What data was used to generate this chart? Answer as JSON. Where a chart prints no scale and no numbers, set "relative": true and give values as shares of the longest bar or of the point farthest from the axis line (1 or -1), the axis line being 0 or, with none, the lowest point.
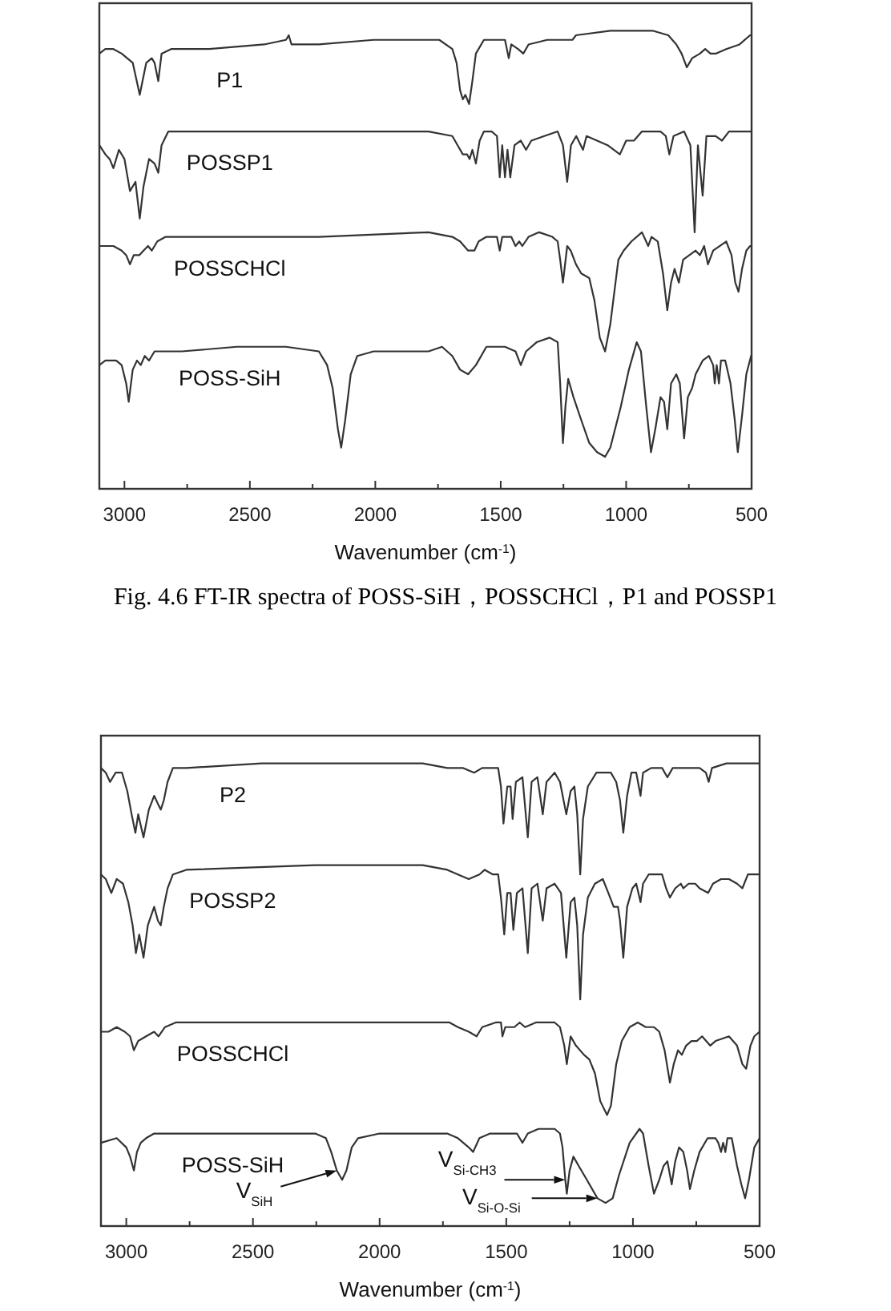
{
  "chart_data": [
    {
      "type": "line",
      "xlabel": "Wavenumber (cm$^{-1}$)",
      "xlim": [
        3100,
        500
      ],
      "xticks": [
        3000,
        {
          "value": 2750,
          "label": null
        },
        2500,
        {
          "value": 2250,
          "label": null
        },
        2000,
        {
          "value": 1750,
          "label": null
        },
        1500,
        {
          "value": 1250,
          "label": null
        },
        1000,
        {
          "value": 750,
          "label": null
        },
        500
      ],
      "relative": true,
      "annotations": [
        "Fig. 4.6 FT-IR spectra of POSS-SiH，POSSCHCl，P1 and POSSP1"
      ],
      "series": [
        {
          "name": "P1",
          "color": "#333333",
          "x": [
            3100,
            3076,
            3044,
            3011,
            2989,
            2967,
            2939,
            2913,
            2891,
            2880,
            2865,
            2852,
            2814,
            2662,
            2443,
            2356,
            2345,
            2334,
            2225,
            2007,
            1745,
            1693,
            1676,
            1662,
            1651,
            1641,
            1626,
            1613,
            1599,
            1567,
            1525,
            1483,
            1468,
            1458,
            1431,
            1410,
            1389,
            1315,
            1214,
            1200,
            1063,
            895,
            832,
            800,
            779,
            758,
            737,
            706,
            685,
            664,
            643,
            601,
            548,
            506,
            500
          ],
          "values": [
            0.95,
            0.96,
            0.96,
            0.95,
            0.94,
            0.93,
            0.86,
            0.93,
            0.94,
            0.93,
            0.89,
            0.95,
            0.96,
            0.96,
            0.97,
            0.98,
            0.99,
            0.97,
            0.97,
            0.98,
            0.98,
            0.96,
            0.93,
            0.87,
            0.85,
            0.86,
            0.84,
            0.89,
            0.95,
            0.98,
            0.98,
            0.98,
            0.94,
            0.97,
            0.96,
            0.95,
            0.97,
            0.98,
            0.98,
            0.99,
            1.0,
            1.0,
            0.99,
            0.97,
            0.95,
            0.92,
            0.94,
            0.95,
            0.96,
            0.95,
            0.95,
            0.96,
            0.97,
            0.99,
            0.99
          ]
        },
        {
          "name": "POSSP1",
          "color": "#333333",
          "x": [
            3100,
            3076,
            3059,
            3044,
            3022,
            3000,
            2978,
            2956,
            2939,
            2924,
            2902,
            2880,
            2865,
            2852,
            2825,
            2662,
            2225,
            1941,
            1788,
            1693,
            1672,
            1651,
            1634,
            1624,
            1613,
            1599,
            1584,
            1567,
            1536,
            1515,
            1504,
            1494,
            1483,
            1473,
            1462,
            1445,
            1420,
            1399,
            1378,
            1326,
            1273,
            1252,
            1235,
            1220,
            1199,
            1172,
            1158,
            1116,
            1074,
            1025,
            1000,
            969,
            937,
            863,
            842,
            828,
            811,
            769,
            744,
            727,
            714,
            695,
            680,
            643,
            618,
            590,
            548,
            502,
            500
          ],
          "values": [
            0.75,
            0.73,
            0.72,
            0.7,
            0.74,
            0.72,
            0.65,
            0.67,
            0.59,
            0.66,
            0.72,
            0.71,
            0.69,
            0.75,
            0.78,
            0.78,
            0.78,
            0.78,
            0.78,
            0.77,
            0.75,
            0.73,
            0.73,
            0.72,
            0.74,
            0.71,
            0.76,
            0.78,
            0.78,
            0.77,
            0.68,
            0.75,
            0.68,
            0.74,
            0.68,
            0.75,
            0.76,
            0.74,
            0.76,
            0.77,
            0.78,
            0.75,
            0.67,
            0.75,
            0.77,
            0.74,
            0.77,
            0.76,
            0.75,
            0.73,
            0.76,
            0.76,
            0.78,
            0.78,
            0.77,
            0.73,
            0.77,
            0.78,
            0.75,
            0.56,
            0.75,
            0.64,
            0.77,
            0.77,
            0.76,
            0.78,
            0.78,
            0.78,
            0.78
          ]
        },
        {
          "name": "POSSCHCl",
          "color": "#333333",
          "x": [
            3100,
            3065,
            3044,
            3011,
            2993,
            2978,
            2963,
            2941,
            2924,
            2906,
            2891,
            2869,
            2836,
            2662,
            2225,
            1788,
            1693,
            1662,
            1630,
            1605,
            1588,
            1557,
            1515,
            1504,
            1494,
            1458,
            1441,
            1426,
            1414,
            1389,
            1347,
            1294,
            1273,
            1263,
            1252,
            1235,
            1221,
            1200,
            1179,
            1147,
            1126,
            1105,
            1084,
            1063,
            1031,
            1010,
            979,
            937,
            912,
            899,
            874,
            853,
            836,
            821,
            807,
            790,
            773,
            748,
            723,
            706,
            689,
            674,
            653,
            601,
            580,
            565,
            552,
            538,
            521,
            506,
            500
          ],
          "values": [
            0.53,
            0.53,
            0.53,
            0.52,
            0.51,
            0.49,
            0.51,
            0.51,
            0.52,
            0.53,
            0.52,
            0.54,
            0.55,
            0.55,
            0.55,
            0.56,
            0.55,
            0.54,
            0.52,
            0.52,
            0.54,
            0.55,
            0.55,
            0.52,
            0.55,
            0.55,
            0.53,
            0.54,
            0.53,
            0.55,
            0.56,
            0.55,
            0.54,
            0.5,
            0.45,
            0.53,
            0.52,
            0.49,
            0.47,
            0.46,
            0.41,
            0.33,
            0.3,
            0.36,
            0.5,
            0.52,
            0.54,
            0.56,
            0.53,
            0.55,
            0.54,
            0.47,
            0.39,
            0.45,
            0.48,
            0.45,
            0.5,
            0.51,
            0.52,
            0.51,
            0.53,
            0.49,
            0.52,
            0.54,
            0.51,
            0.45,
            0.43,
            0.48,
            0.52,
            0.53,
            0.53
          ]
        },
        {
          "name": "POSS-SiH",
          "color": "#333333",
          "x": [
            3100,
            3076,
            3033,
            3011,
            2993,
            2983,
            2967,
            2950,
            2935,
            2919,
            2902,
            2880,
            2771,
            2552,
            2356,
            2225,
            2192,
            2170,
            2149,
            2136,
            2120,
            2098,
            2072,
            2007,
            1898,
            1832,
            1788,
            1734,
            1693,
            1662,
            1630,
            1599,
            1557,
            1483,
            1441,
            1420,
            1399,
            1357,
            1305,
            1273,
            1263,
            1252,
            1242,
            1231,
            1210,
            1179,
            1147,
            1116,
            1084,
            1063,
            1021,
            989,
            958,
            941,
            920,
            901,
            884,
            863,
            849,
            836,
            821,
            800,
            786,
            769,
            754,
            737,
            723,
            695,
            670,
            653,
            647,
            639,
            630,
            622,
            605,
            584,
            567,
            555,
            538,
            521,
            502,
            500
          ],
          "values": [
            0.27,
            0.28,
            0.28,
            0.27,
            0.23,
            0.19,
            0.26,
            0.28,
            0.27,
            0.29,
            0.28,
            0.3,
            0.3,
            0.31,
            0.31,
            0.3,
            0.27,
            0.22,
            0.13,
            0.09,
            0.15,
            0.25,
            0.29,
            0.3,
            0.3,
            0.3,
            0.3,
            0.31,
            0.29,
            0.26,
            0.25,
            0.27,
            0.31,
            0.31,
            0.3,
            0.27,
            0.3,
            0.32,
            0.33,
            0.32,
            0.23,
            0.1,
            0.18,
            0.24,
            0.2,
            0.15,
            0.1,
            0.08,
            0.07,
            0.09,
            0.18,
            0.26,
            0.32,
            0.3,
            0.18,
            0.08,
            0.13,
            0.2,
            0.19,
            0.13,
            0.23,
            0.25,
            0.23,
            0.11,
            0.2,
            0.22,
            0.25,
            0.28,
            0.29,
            0.27,
            0.23,
            0.27,
            0.23,
            0.28,
            0.28,
            0.23,
            0.15,
            0.08,
            0.16,
            0.25,
            0.29,
            0.29
          ]
        }
      ]
    },
    {
      "type": "line",
      "xlabel": "Wavenumber (cm$^{-1}$)",
      "xlim": [
        3100,
        500
      ],
      "xticks": [
        3000,
        {
          "value": 2750,
          "label": null
        },
        2500,
        {
          "value": 2250,
          "label": null
        },
        2000,
        {
          "value": 1750,
          "label": null
        },
        1500,
        {
          "value": 1250,
          "label": null
        },
        1000,
        {
          "value": 750,
          "label": null
        },
        500
      ],
      "relative": true,
      "annotations": [
        {
          "text": "V$_{SiH}$",
          "x": 2169,
          "y": 0.12
        },
        {
          "text": "V$_{Si-CH3}$",
          "x": 1267,
          "y": 0.1
        },
        {
          "text": "V$_{Si-O-Si}$",
          "x": 1140,
          "y": 0.06
        }
      ],
      "series": [
        {
          "name": "P2",
          "color": "#333333",
          "x": [
            3100,
            3081,
            3064,
            3042,
            3017,
            2996,
            2979,
            2964,
            2953,
            2932,
            2911,
            2890,
            2873,
            2864,
            2852,
            2837,
            2816,
            2763,
            2466,
            2042,
            1830,
            1733,
            1670,
            1627,
            1595,
            1564,
            1532,
            1521,
            1511,
            1496,
            1483,
            1475,
            1462,
            1436,
            1415,
            1400,
            1377,
            1356,
            1341,
            1309,
            1288,
            1263,
            1246,
            1231,
            1220,
            1208,
            1197,
            1178,
            1144,
            1108,
            1087,
            1066,
            1051,
            1038,
            1023,
            1006,
            987,
            970,
            960,
            928,
            885,
            864,
            843,
            801,
            737,
            712,
            701,
            688,
            631,
            500
          ],
          "values": [
            0.99,
            0.98,
            0.96,
            0.98,
            0.98,
            0.94,
            0.89,
            0.85,
            0.89,
            0.84,
            0.9,
            0.93,
            0.91,
            0.9,
            0.92,
            0.96,
            0.99,
            0.99,
            1.0,
            1.0,
            1.0,
            0.99,
            0.99,
            0.98,
            0.99,
            0.99,
            0.99,
            0.95,
            0.87,
            0.95,
            0.95,
            0.88,
            0.96,
            0.97,
            0.84,
            0.96,
            0.97,
            0.89,
            0.96,
            0.98,
            0.96,
            0.89,
            0.94,
            0.95,
            0.89,
            0.76,
            0.88,
            0.95,
            0.98,
            0.98,
            0.98,
            0.96,
            0.92,
            0.85,
            0.93,
            0.98,
            0.98,
            0.93,
            0.98,
            0.99,
            0.99,
            0.97,
            0.99,
            0.99,
            0.99,
            0.98,
            0.96,
            0.99,
            1.0,
            1.0
          ]
        },
        {
          "name": "POSSP2",
          "color": "#333333",
          "x": [
            3100,
            3081,
            3059,
            3038,
            3013,
            2992,
            2975,
            2962,
            2949,
            2932,
            2915,
            2890,
            2875,
            2864,
            2852,
            2837,
            2816,
            2763,
            2254,
            1830,
            1733,
            1691,
            1648,
            1606,
            1585,
            1553,
            1532,
            1521,
            1508,
            1496,
            1483,
            1472,
            1458,
            1436,
            1415,
            1400,
            1377,
            1356,
            1341,
            1309,
            1284,
            1263,
            1246,
            1231,
            1220,
            1208,
            1197,
            1178,
            1150,
            1119,
            1097,
            1076,
            1059,
            1051,
            1038,
            1023,
            1002,
            987,
            970,
            960,
            938,
            885,
            869,
            854,
            833,
            811,
            801,
            780,
            754,
            737,
            703,
            684,
            652,
            621,
            589,
            568,
            546,
            525,
            500
          ],
          "values": [
            0.76,
            0.75,
            0.72,
            0.75,
            0.74,
            0.7,
            0.65,
            0.59,
            0.63,
            0.58,
            0.65,
            0.69,
            0.66,
            0.65,
            0.69,
            0.73,
            0.76,
            0.77,
            0.78,
            0.78,
            0.77,
            0.76,
            0.75,
            0.76,
            0.77,
            0.76,
            0.76,
            0.71,
            0.63,
            0.72,
            0.72,
            0.64,
            0.72,
            0.73,
            0.59,
            0.73,
            0.74,
            0.66,
            0.73,
            0.74,
            0.72,
            0.58,
            0.7,
            0.71,
            0.65,
            0.49,
            0.63,
            0.71,
            0.74,
            0.75,
            0.72,
            0.69,
            0.69,
            0.66,
            0.58,
            0.69,
            0.73,
            0.74,
            0.7,
            0.74,
            0.76,
            0.76,
            0.73,
            0.71,
            0.73,
            0.74,
            0.73,
            0.74,
            0.74,
            0.73,
            0.72,
            0.74,
            0.75,
            0.75,
            0.74,
            0.73,
            0.76,
            0.76,
            0.76
          ]
        },
        {
          "name": "POSSCHCl",
          "color": "#333333",
          "x": [
            3100,
            3070,
            3038,
            3006,
            2985,
            2970,
            2953,
            2922,
            2890,
            2873,
            2847,
            2805,
            2466,
            2042,
            1724,
            1691,
            1648,
            1617,
            1595,
            1542,
            1521,
            1515,
            1504,
            1468,
            1447,
            1426,
            1383,
            1309,
            1288,
            1271,
            1261,
            1246,
            1225,
            1193,
            1172,
            1150,
            1129,
            1102,
            1087,
            1066,
            1044,
            1013,
            981,
            949,
            917,
            896,
            875,
            854,
            839,
            822,
            807,
            790,
            769,
            748,
            727,
            695,
            674,
            621,
            589,
            568,
            553,
            536,
            521,
            500
          ],
          "values": [
            0.42,
            0.42,
            0.43,
            0.42,
            0.41,
            0.38,
            0.4,
            0.41,
            0.42,
            0.41,
            0.43,
            0.44,
            0.44,
            0.44,
            0.44,
            0.43,
            0.42,
            0.41,
            0.43,
            0.44,
            0.44,
            0.41,
            0.43,
            0.43,
            0.44,
            0.43,
            0.44,
            0.44,
            0.43,
            0.39,
            0.35,
            0.41,
            0.39,
            0.37,
            0.36,
            0.33,
            0.27,
            0.24,
            0.26,
            0.35,
            0.4,
            0.43,
            0.44,
            0.43,
            0.43,
            0.42,
            0.38,
            0.31,
            0.35,
            0.38,
            0.37,
            0.39,
            0.4,
            0.4,
            0.41,
            0.39,
            0.4,
            0.41,
            0.39,
            0.35,
            0.34,
            0.39,
            0.41,
            0.42
          ]
        },
        {
          "name": "POSS-SiH",
          "color": "#333333",
          "x": [
            3100,
            3038,
            3000,
            2985,
            2970,
            2958,
            2943,
            2922,
            2890,
            2784,
            2466,
            2254,
            2212,
            2191,
            2169,
            2148,
            2131,
            2110,
            2085,
            2000,
            1830,
            1733,
            1691,
            1648,
            1631,
            1606,
            1564,
            1479,
            1458,
            1436,
            1415,
            1373,
            1309,
            1288,
            1278,
            1267,
            1261,
            1250,
            1235,
            1214,
            1182,
            1140,
            1108,
            1080,
            1055,
            1013,
            974,
            960,
            938,
            917,
            896,
            879,
            864,
            847,
            833,
            818,
            801,
            786,
            775,
            758,
            737,
            705,
            674,
            663,
            652,
            644,
            635,
            627,
            610,
            589,
            572,
            557,
            542,
            521,
            500
          ],
          "values": [
            0.18,
            0.19,
            0.17,
            0.15,
            0.12,
            0.16,
            0.18,
            0.19,
            0.2,
            0.2,
            0.2,
            0.2,
            0.19,
            0.16,
            0.12,
            0.1,
            0.12,
            0.17,
            0.19,
            0.2,
            0.2,
            0.2,
            0.19,
            0.17,
            0.16,
            0.19,
            0.2,
            0.2,
            0.2,
            0.18,
            0.2,
            0.21,
            0.21,
            0.2,
            0.17,
            0.1,
            0.07,
            0.12,
            0.15,
            0.13,
            0.1,
            0.06,
            0.05,
            0.06,
            0.11,
            0.18,
            0.21,
            0.2,
            0.13,
            0.07,
            0.1,
            0.13,
            0.14,
            0.09,
            0.14,
            0.17,
            0.16,
            0.12,
            0.08,
            0.12,
            0.16,
            0.19,
            0.19,
            0.18,
            0.16,
            0.18,
            0.16,
            0.19,
            0.19,
            0.13,
            0.09,
            0.06,
            0.1,
            0.17,
            0.19
          ]
        }
      ]
    }
  ]
}
